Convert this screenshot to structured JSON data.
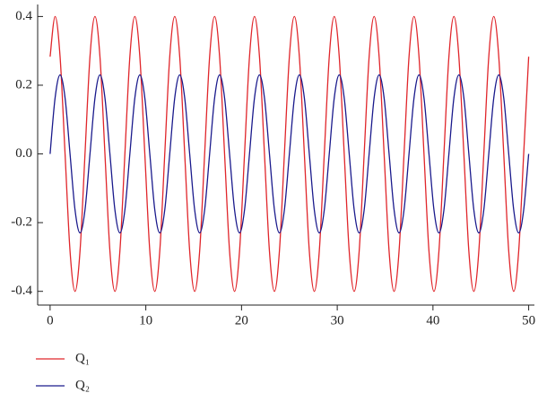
{
  "chart_data": {
    "type": "line",
    "x": [
      0,
      0.521,
      1.042,
      1.563,
      2.083,
      2.604,
      3.125,
      3.646,
      4.167,
      4.688,
      5.208,
      5.729,
      6.25,
      6.771,
      7.292,
      7.813,
      8.333,
      8.854,
      9.375,
      9.896,
      10.417,
      10.938,
      11.458,
      11.979,
      12.5,
      13.021,
      13.542,
      14.063,
      14.583,
      15.104,
      15.625,
      16.146,
      16.667,
      17.188,
      17.708,
      18.229,
      18.75,
      19.271,
      19.792,
      20.313,
      20.833,
      21.354,
      21.875,
      22.396,
      22.917,
      23.438,
      23.958,
      24.479,
      25,
      25.521,
      26.042,
      26.563,
      27.083,
      27.604,
      28.125,
      28.646,
      29.167,
      29.688,
      30.208,
      30.729,
      31.25,
      31.771,
      32.292,
      32.813,
      33.333,
      33.854,
      34.375,
      34.896,
      35.417,
      35.938,
      36.458,
      36.979,
      37.5,
      38.021,
      38.542,
      39.063,
      39.583,
      40.104,
      40.625,
      41.146,
      41.667,
      42.188,
      42.708,
      43.229,
      43.75,
      44.271,
      44.792,
      45.313,
      45.833,
      46.354,
      46.875,
      47.396,
      47.917,
      48.438,
      48.958,
      49.479,
      50
    ],
    "series": [
      {
        "name": "Q₁",
        "color": "#e0262b",
        "values": [
          0.283,
          0.4,
          0.283,
          0,
          -0.283,
          -0.4,
          -0.283,
          0,
          0.283,
          0.4,
          0.283,
          0,
          -0.283,
          -0.4,
          -0.283,
          0,
          0.283,
          0.4,
          0.283,
          0,
          -0.283,
          -0.4,
          -0.283,
          0,
          0.283,
          0.4,
          0.283,
          0,
          -0.283,
          -0.4,
          -0.283,
          0,
          0.283,
          0.4,
          0.283,
          0,
          -0.283,
          -0.4,
          -0.283,
          0,
          0.283,
          0.4,
          0.283,
          0,
          -0.283,
          -0.4,
          -0.283,
          0,
          0.283,
          0.4,
          0.283,
          0,
          -0.283,
          -0.4,
          -0.283,
          0,
          0.283,
          0.4,
          0.283,
          0,
          -0.283,
          -0.4,
          -0.283,
          0,
          0.283,
          0.4,
          0.283,
          0,
          -0.283,
          -0.4,
          -0.283,
          0,
          0.283,
          0.4,
          0.283,
          0,
          -0.283,
          -0.4,
          -0.283,
          0,
          0.283,
          0.4,
          0.283,
          0,
          -0.283,
          -0.4,
          -0.283,
          0,
          0.283,
          0.4,
          0.283,
          0,
          -0.283,
          -0.4,
          -0.283,
          0,
          0.283
        ]
      },
      {
        "name": "Q₂",
        "color": "#1a1a8c",
        "values": [
          0,
          0.163,
          0.23,
          0.163,
          0,
          -0.163,
          -0.23,
          -0.163,
          0,
          0.163,
          0.23,
          0.163,
          0,
          -0.163,
          -0.23,
          -0.163,
          0,
          0.163,
          0.23,
          0.163,
          0,
          -0.163,
          -0.23,
          -0.163,
          0,
          0.163,
          0.23,
          0.163,
          0,
          -0.163,
          -0.23,
          -0.163,
          0,
          0.163,
          0.23,
          0.163,
          0,
          -0.163,
          -0.23,
          -0.163,
          0,
          0.163,
          0.23,
          0.163,
          0,
          -0.163,
          -0.23,
          -0.163,
          0,
          0.163,
          0.23,
          0.163,
          0,
          -0.163,
          -0.23,
          -0.163,
          0,
          0.163,
          0.23,
          0.163,
          0,
          -0.163,
          -0.23,
          -0.163,
          0,
          0.163,
          0.23,
          0.163,
          0,
          -0.163,
          -0.23,
          -0.163,
          0,
          0.163,
          0.23,
          0.163,
          0,
          -0.163,
          -0.23,
          -0.163,
          0,
          0.163,
          0.23,
          0.163,
          0,
          -0.163,
          -0.23,
          -0.163,
          0,
          0.163,
          0.23,
          0.163,
          0,
          -0.163,
          -0.23,
          -0.163,
          0
        ]
      }
    ],
    "xlim": [
      -1.3,
      50.6
    ],
    "xticks": [
      0,
      10,
      20,
      30,
      40,
      50
    ],
    "ylim": [
      -0.44,
      0.435
    ],
    "yticks": [
      {
        "value": -0.4,
        "label": "-0.4"
      },
      {
        "value": -0.2,
        "label": "-0.2"
      },
      {
        "value": 0,
        "label": "0.0"
      },
      0.2,
      0.4
    ],
    "legend": "bottom-left"
  }
}
